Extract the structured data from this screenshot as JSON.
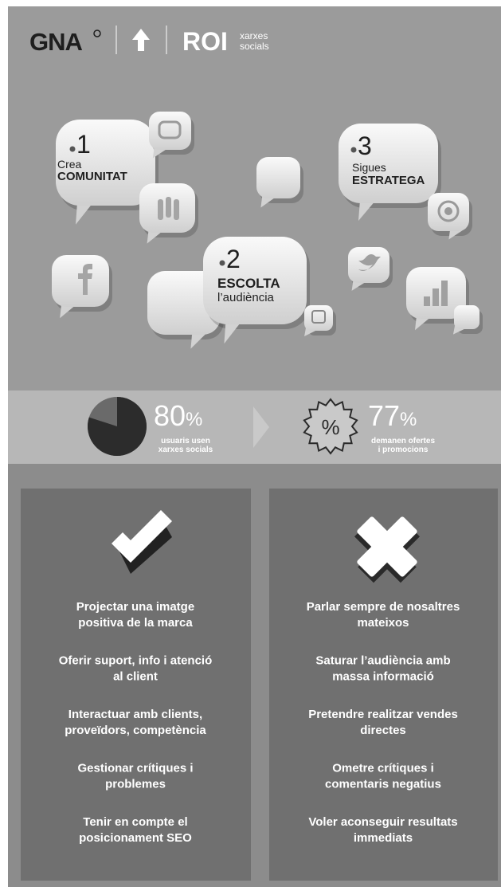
{
  "header": {
    "logo": "GNA",
    "title": "ROI",
    "subtitle": [
      "xarxes",
      "socials"
    ]
  },
  "steps": [
    {
      "number": "1",
      "line1": "Crea",
      "line2": "COMUNITAT"
    },
    {
      "number": "2",
      "line1": "ESCOLTA",
      "line2": "l’audiència"
    },
    {
      "number": "3",
      "line1": "Sigues",
      "line2": "ESTRATEGA"
    }
  ],
  "stats": [
    {
      "value": 80,
      "unit": "%",
      "label": [
        "usuaris usen",
        "xarxes socials"
      ]
    },
    {
      "value": 77,
      "unit": "%",
      "label": [
        "demanen ofertes",
        "i promocions"
      ]
    }
  ],
  "badge": "%",
  "do": [
    [
      "Projectar una imatge",
      "positiva de la marca"
    ],
    [
      "Oferir suport, info i atenció",
      "al client"
    ],
    [
      "Interactuar amb clients,",
      "proveïdors, competència"
    ],
    [
      "Gestionar crítiques i",
      "problemes"
    ],
    [
      "Tenir en compte el",
      "posicionament SEO"
    ]
  ],
  "dont": [
    [
      "Parlar sempre de nosaltres",
      "mateixos"
    ],
    [
      "Saturar l’audiència amb",
      "massa informació"
    ],
    [
      "Pretendre realitzar vendes",
      "directes"
    ],
    [
      "Ometre crítiques i",
      "comentaris negatius"
    ],
    [
      "Voler aconseguir resultats",
      "immediats"
    ]
  ]
}
